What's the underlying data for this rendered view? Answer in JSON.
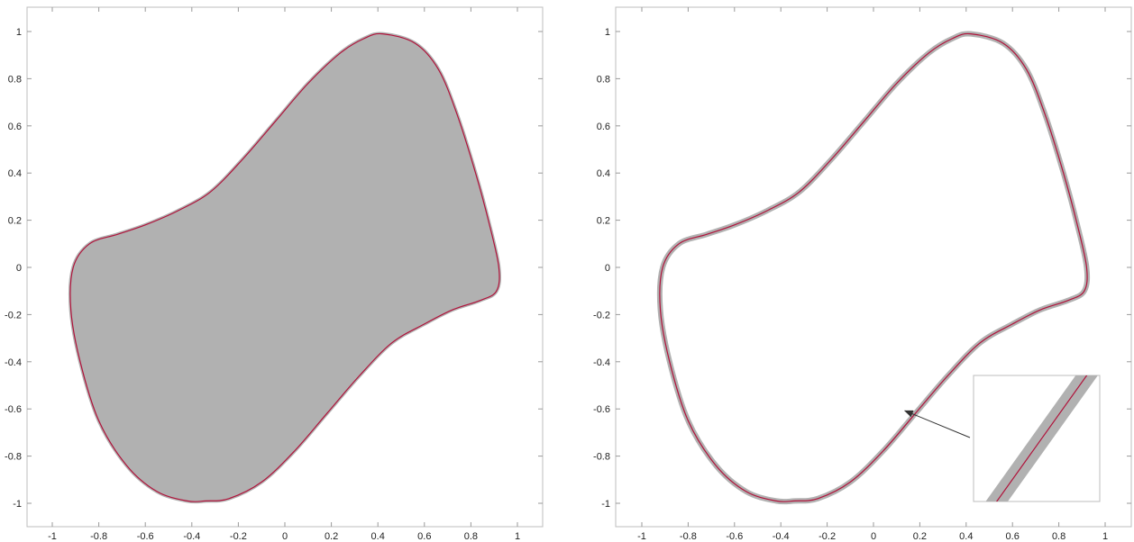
{
  "colors": {
    "band": "#b1b1b1",
    "curve": "#b0123a",
    "frame": "#bdbdbd",
    "arrow": "#333333"
  },
  "chart_data": [
    {
      "type": "line",
      "title": "",
      "xlabel": "",
      "ylabel": "",
      "xlim": [
        -1.1,
        1.1
      ],
      "ylim": [
        -1.1,
        1.1
      ],
      "xticks": [
        -1,
        -0.8,
        -0.6,
        -0.4,
        -0.2,
        0,
        0.2,
        0.4,
        0.6,
        0.8,
        1
      ],
      "xtick_labels": [
        "-1",
        "-0.8",
        "-0.6",
        "-0.4",
        "-0.2",
        "0",
        "0.2",
        "0.4",
        "0.6",
        "0.8",
        "1"
      ],
      "yticks": [
        1,
        0.8,
        0.6,
        0.4,
        0.2,
        0,
        -0.2,
        -0.4,
        -0.6,
        -0.8,
        -1
      ],
      "ytick_labels": [
        "1",
        "0.8",
        "0.6",
        "0.4",
        "0.2",
        "0",
        "-0.2",
        "-0.4",
        "-0.6",
        "-0.8",
        "-1"
      ],
      "grid": false,
      "filled_region": true,
      "series": [
        {
          "x": [
            0.42,
            0.56,
            0.66,
            0.74,
            0.82,
            0.88,
            0.92,
            0.91,
            0.84,
            0.72,
            0.6,
            0.46,
            0.32,
            0.18,
            0.04,
            -0.1,
            -0.24,
            -0.34,
            -0.42,
            -0.55,
            -0.68,
            -0.8,
            -0.88,
            -0.92,
            -0.91,
            -0.84,
            -0.72,
            -0.6,
            -0.46,
            -0.32,
            -0.18,
            -0.04,
            0.1,
            0.24,
            0.34
          ],
          "y": [
            0.99,
            0.95,
            0.84,
            0.65,
            0.4,
            0.18,
            0.0,
            -0.1,
            -0.14,
            -0.18,
            -0.24,
            -0.32,
            -0.46,
            -0.62,
            -0.78,
            -0.91,
            -0.98,
            -0.99,
            -0.99,
            -0.95,
            -0.84,
            -0.65,
            -0.4,
            -0.18,
            0.0,
            0.1,
            0.14,
            0.18,
            0.24,
            0.32,
            0.46,
            0.62,
            0.78,
            0.91,
            0.97
          ]
        }
      ]
    },
    {
      "type": "line",
      "title": "",
      "xlabel": "",
      "ylabel": "",
      "xlim": [
        -1.1,
        1.1
      ],
      "ylim": [
        -1.1,
        1.1
      ],
      "xticks": [
        -1,
        -0.8,
        -0.6,
        -0.4,
        -0.2,
        0,
        0.2,
        0.4,
        0.6,
        0.8,
        1
      ],
      "xtick_labels": [
        "-1",
        "-0.8",
        "-0.6",
        "-0.4",
        "-0.2",
        "0",
        "0.2",
        "0.4",
        "0.6",
        "0.8",
        "1"
      ],
      "yticks": [
        1,
        0.8,
        0.6,
        0.4,
        0.2,
        0,
        -0.2,
        -0.4,
        -0.6,
        -0.8,
        -1
      ],
      "ytick_labels": [
        "1",
        "0.8",
        "0.6",
        "0.4",
        "0.2",
        "0",
        "-0.2",
        "-0.4",
        "-0.6",
        "-0.8",
        "-1"
      ],
      "grid": false,
      "filled_region": false,
      "inset": {
        "target_point": [
          0.12,
          -0.6
        ]
      },
      "series": [
        {
          "x": [
            0.42,
            0.56,
            0.66,
            0.74,
            0.82,
            0.88,
            0.92,
            0.91,
            0.84,
            0.72,
            0.6,
            0.46,
            0.32,
            0.18,
            0.04,
            -0.1,
            -0.24,
            -0.34,
            -0.42,
            -0.55,
            -0.68,
            -0.8,
            -0.88,
            -0.92,
            -0.91,
            -0.84,
            -0.72,
            -0.6,
            -0.46,
            -0.32,
            -0.18,
            -0.04,
            0.1,
            0.24,
            0.34
          ],
          "y": [
            0.99,
            0.95,
            0.84,
            0.65,
            0.4,
            0.18,
            0.0,
            -0.1,
            -0.14,
            -0.18,
            -0.24,
            -0.32,
            -0.46,
            -0.62,
            -0.78,
            -0.91,
            -0.98,
            -0.99,
            -0.99,
            -0.95,
            -0.84,
            -0.65,
            -0.4,
            -0.18,
            0.0,
            0.1,
            0.14,
            0.18,
            0.24,
            0.32,
            0.46,
            0.62,
            0.78,
            0.91,
            0.97
          ]
        }
      ]
    }
  ]
}
